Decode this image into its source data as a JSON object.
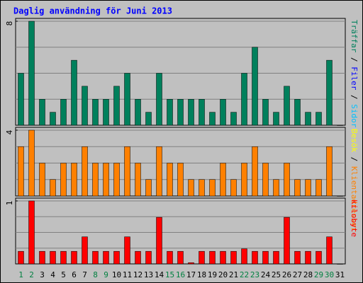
{
  "title": "Daglig användning för Juni 2013",
  "chart_data": [
    {
      "type": "bar",
      "ylim": [
        0,
        8
      ],
      "yticks": [
        8
      ],
      "grid": true,
      "categories": [
        "1",
        "2",
        "3",
        "4",
        "5",
        "6",
        "7",
        "8",
        "9",
        "10",
        "11",
        "12",
        "13",
        "14",
        "15",
        "16",
        "17",
        "18",
        "19",
        "20",
        "21",
        "22",
        "23",
        "24",
        "25",
        "26",
        "27",
        "28",
        "29",
        "30",
        "31"
      ],
      "category_colors": [
        "#008040",
        "#008040",
        "#000000",
        "#000000",
        "#000000",
        "#000000",
        "#000000",
        "#008040",
        "#008040",
        "#000000",
        "#000000",
        "#000000",
        "#000000",
        "#000000",
        "#008040",
        "#008040",
        "#000000",
        "#000000",
        "#000000",
        "#000000",
        "#000000",
        "#008040",
        "#008040",
        "#000000",
        "#000000",
        "#000000",
        "#000000",
        "#000000",
        "#008040",
        "#008040",
        "#000000"
      ],
      "series": [
        {
          "name": "Träffar",
          "color": "#00805c",
          "values": [
            4,
            8,
            2,
            1,
            2,
            5,
            3,
            2,
            2,
            3,
            4,
            2,
            1,
            4,
            2,
            2,
            2,
            2,
            1,
            2,
            1,
            4,
            6,
            2,
            1,
            3,
            2,
            1,
            1,
            5,
            0
          ]
        }
      ],
      "side_labels": [
        {
          "text": "Träffar",
          "color": "#00805c"
        },
        {
          "text": " / ",
          "color": "#000000"
        },
        {
          "text": "Filer",
          "color": "#0000ff"
        },
        {
          "text": " / ",
          "color": "#000000"
        },
        {
          "text": "Sidor",
          "color": "#00c0ff"
        }
      ]
    },
    {
      "type": "bar",
      "ylim": [
        0,
        4
      ],
      "yticks": [
        4
      ],
      "grid": true,
      "series": [
        {
          "name": "Klientadresser",
          "color": "#ff8000",
          "values": [
            3,
            4,
            2,
            1,
            2,
            2,
            3,
            2,
            2,
            2,
            3,
            2,
            1,
            3,
            2,
            2,
            1,
            1,
            1,
            2,
            1,
            2,
            3,
            2,
            1,
            2,
            1,
            1,
            1,
            3,
            0
          ]
        }
      ],
      "side_labels": [
        {
          "text": "Besök",
          "color": "#ffff00"
        },
        {
          "text": " / ",
          "color": "#000000"
        },
        {
          "text": "Klientadresser",
          "color": "#ff8000"
        }
      ]
    },
    {
      "type": "bar",
      "ylim": [
        0,
        1
      ],
      "yticks": [
        1
      ],
      "grid": true,
      "series": [
        {
          "name": "kilobyte",
          "color": "#ff0000",
          "values": [
            0.2,
            1,
            0.2,
            0.2,
            0.2,
            0.2,
            0.43,
            0.2,
            0.2,
            0.2,
            0.43,
            0.2,
            0.2,
            0.74,
            0.2,
            0.2,
            0.02,
            0.2,
            0.2,
            0.2,
            0.2,
            0.24,
            0.2,
            0.2,
            0.2,
            0.74,
            0.2,
            0.2,
            0.2,
            0.43,
            0
          ]
        }
      ],
      "side_labels": [
        {
          "text": "kilobyte",
          "color": "#ff0000"
        }
      ]
    }
  ]
}
